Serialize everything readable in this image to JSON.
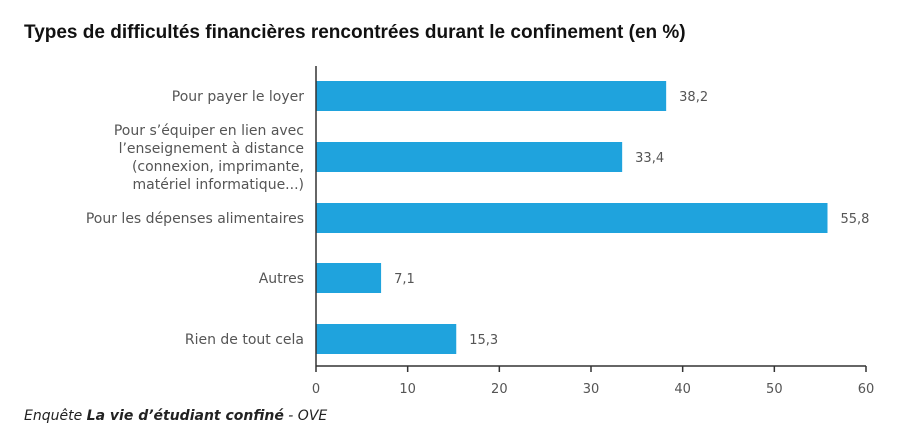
{
  "chart_data": {
    "type": "bar",
    "orientation": "horizontal",
    "title": "Types de difficultés financières rencontrées durant le confinement (en %)",
    "categories": [
      [
        "Pour payer le loyer"
      ],
      [
        "Pour s’équiper en lien avec",
        "l’enseignement à distance",
        "(connexion, imprimante,",
        "matériel informatique...)"
      ],
      [
        "Pour les dépenses alimentaires"
      ],
      [
        "Autres"
      ],
      [
        "Rien de tout cela"
      ]
    ],
    "values": [
      38.2,
      33.4,
      55.8,
      7.1,
      15.3
    ],
    "value_labels": [
      "38,2",
      "33,4",
      "55,8",
      "7,1",
      "15,3"
    ],
    "xlim": [
      0,
      60
    ],
    "xticks": [
      0,
      10,
      20,
      30,
      40,
      50,
      60
    ],
    "grid": false,
    "bar_color": "#1fa3dd",
    "axis_color": "#333333"
  },
  "source": {
    "prefix": "Enquête ",
    "name": "La vie d’étudiant confiné",
    "suffix": " - OVE"
  }
}
